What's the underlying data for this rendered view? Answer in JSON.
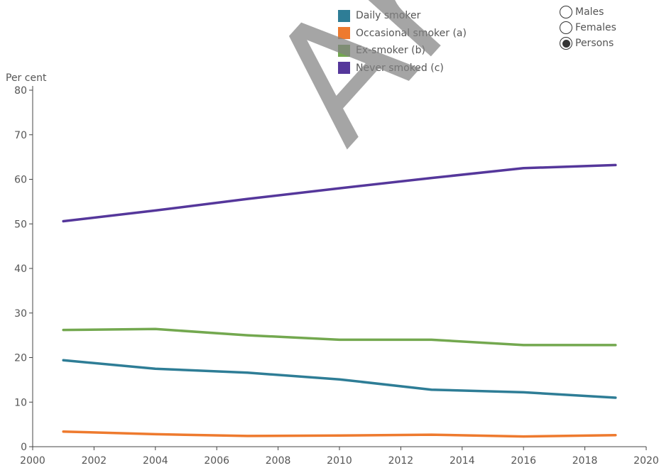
{
  "chart_data": {
    "type": "line",
    "ylabel": "Per cent",
    "ylim": [
      0,
      80
    ],
    "yticks": [
      0,
      10,
      20,
      30,
      40,
      50,
      60,
      70,
      80
    ],
    "xlim": [
      2000,
      2020
    ],
    "xticks": [
      2000,
      2002,
      2004,
      2006,
      2008,
      2010,
      2012,
      2014,
      2016,
      2018,
      2020
    ],
    "grid": false,
    "legend_position": "top",
    "series": [
      {
        "name": "Daily smoker",
        "color": "#2e7d96",
        "x": [
          2001,
          2004,
          2007,
          2010,
          2013,
          2016,
          2019
        ],
        "values": [
          19.4,
          17.5,
          16.6,
          15.1,
          12.8,
          12.2,
          11.0
        ]
      },
      {
        "name": "Occasional smoker (a)",
        "color": "#ee7a2e",
        "x": [
          2001,
          2004,
          2007,
          2010,
          2013,
          2016,
          2019
        ],
        "values": [
          3.4,
          2.8,
          2.4,
          2.5,
          2.7,
          2.3,
          2.6
        ]
      },
      {
        "name": "Ex-smoker (b)",
        "color": "#73a84f",
        "x": [
          2001,
          2004,
          2007,
          2010,
          2013,
          2016,
          2019
        ],
        "values": [
          26.2,
          26.4,
          25.0,
          24.0,
          24.0,
          22.8,
          22.8
        ]
      },
      {
        "name": "Never smoked (c)",
        "color": "#55379b",
        "x": [
          2001,
          2004,
          2007,
          2010,
          2013,
          2016,
          2019
        ],
        "values": [
          50.6,
          53.0,
          55.6,
          58.0,
          60.3,
          62.5,
          63.2
        ]
      }
    ]
  },
  "filter": {
    "options": [
      {
        "label": "Males",
        "selected": false
      },
      {
        "label": "Females",
        "selected": false
      },
      {
        "label": "Persons",
        "selected": true
      }
    ]
  },
  "watermark": "Archi"
}
